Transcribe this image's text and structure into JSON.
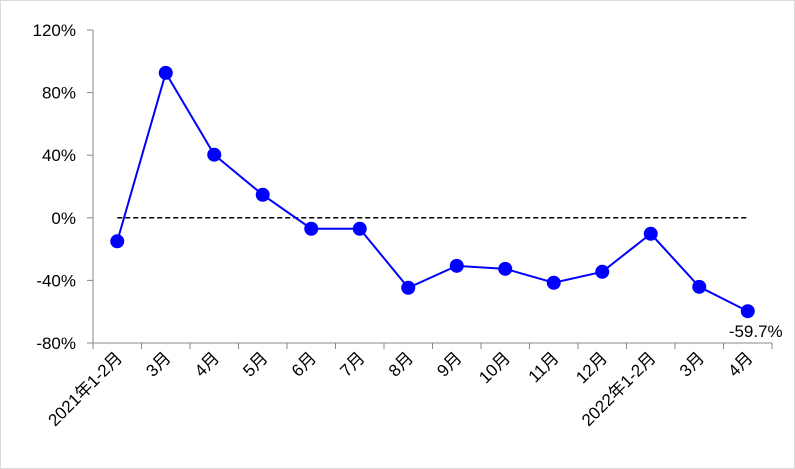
{
  "chart_data": {
    "type": "line",
    "categories": [
      "2021年1-2月",
      "3月",
      "4月",
      "5月",
      "6月",
      "7月",
      "8月",
      "9月",
      "10月",
      "11月",
      "12月",
      "2022年1-2月",
      "3月",
      "4月"
    ],
    "series": [
      {
        "color": "#0000ff",
        "values": [
          -15,
          92.6,
          40.3,
          14.7,
          -7,
          -7,
          -44.7,
          -30.7,
          -32.6,
          -41.5,
          -34.5,
          -10.2,
          -44.1,
          -59.7
        ],
        "value_labels": [
          null,
          null,
          null,
          null,
          null,
          null,
          null,
          null,
          null,
          null,
          null,
          null,
          null,
          "-59.7%"
        ]
      }
    ],
    "ylim": [
      -80,
      120
    ],
    "yticks": [
      {
        "value": -80,
        "label": "-80%"
      },
      {
        "value": -40,
        "label": "-40%"
      },
      {
        "value": 0,
        "label": "0%"
      },
      {
        "value": 40,
        "label": "40%"
      },
      {
        "value": 80,
        "label": "80%"
      },
      {
        "value": 120,
        "label": "120%"
      }
    ]
  }
}
